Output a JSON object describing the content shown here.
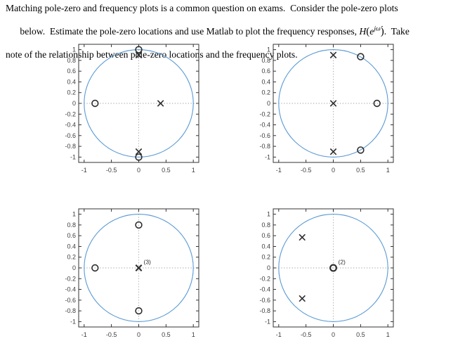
{
  "document": {
    "lines": [
      {
        "text": "Matching pole-zero and frequency plots is a common question on exams.  Consider the pole-zero plots"
      },
      {
        "pre": "below.  Estimate the pole-zero locations and use Matlab to plot the frequency responses, ",
        "formula": {
          "H": "H",
          "open": "(",
          "e": "e",
          "sup": "jω̂",
          "close": ")"
        },
        "post": ".  Take"
      },
      {
        "text": "note of the relationship between pole-zero locations and the frequency plots."
      }
    ]
  },
  "style": {
    "unit_circle_color": "#5b9bd5",
    "marker_color": "#2e2e2e",
    "axis_color": "#333333",
    "tick_label_color": "#3d3d3d",
    "dotted_line_color": "#9a9a9a",
    "annotation_color": "#2b2b2b"
  },
  "chart_data": [
    {
      "type": "scatter",
      "name": "pole-zero-plot-1",
      "title": "",
      "xlabel": "",
      "ylabel": "",
      "unit_circle": true,
      "grid": false,
      "xlim": [
        -1.1,
        1.1
      ],
      "ylim": [
        -1.1,
        1.1
      ],
      "xticks": [
        -1,
        -0.5,
        0,
        0.5,
        1
      ],
      "xtick_labels": [
        "-1",
        "-0.5",
        "0",
        "0.5",
        "1"
      ],
      "yticks": [
        1,
        0.8,
        0.6,
        0.4,
        0.2,
        0,
        -0.2,
        -0.4,
        -0.6,
        -0.8,
        -1
      ],
      "ytick_labels": [
        "1",
        "0.8",
        "0.6",
        "0.4",
        "0.2",
        "0",
        "-0.2",
        "-0.4",
        "-0.6",
        "-0.8",
        "-1"
      ],
      "zeros": [
        [
          0,
          1
        ],
        [
          -0.8,
          0
        ],
        [
          0,
          -1
        ]
      ],
      "poles": [
        [
          0,
          0.9
        ],
        [
          0.4,
          0
        ],
        [
          0,
          -0.9
        ]
      ],
      "annotation": null
    },
    {
      "type": "scatter",
      "name": "pole-zero-plot-2",
      "title": "",
      "xlabel": "",
      "ylabel": "",
      "unit_circle": true,
      "grid": false,
      "xlim": [
        -1.1,
        1.1
      ],
      "ylim": [
        -1.1,
        1.1
      ],
      "xticks": [
        -1,
        -0.5,
        0,
        0.5,
        1
      ],
      "xtick_labels": [
        "-1",
        "-0.5",
        "0",
        "0.5",
        "1"
      ],
      "yticks": [
        1,
        0.8,
        0.6,
        0.4,
        0.2,
        0,
        -0.2,
        -0.4,
        -0.6,
        -0.8,
        -1
      ],
      "ytick_labels": [
        "1",
        "0.8",
        "0.6",
        "0.4",
        "0.2",
        "0",
        "-0.2",
        "-0.4",
        "-0.6",
        "-0.8",
        "-1"
      ],
      "zeros": [
        [
          0.5,
          0.87
        ],
        [
          0.8,
          0
        ],
        [
          0.5,
          -0.87
        ]
      ],
      "poles": [
        [
          0,
          0.9
        ],
        [
          0,
          0
        ],
        [
          0,
          -0.9
        ]
      ],
      "annotation": null
    },
    {
      "type": "scatter",
      "name": "pole-zero-plot-3",
      "title": "",
      "xlabel": "",
      "ylabel": "",
      "unit_circle": true,
      "grid": false,
      "xlim": [
        -1.1,
        1.1
      ],
      "ylim": [
        -1.1,
        1.1
      ],
      "xticks": [
        -1,
        -0.5,
        0,
        0.5,
        1
      ],
      "xtick_labels": [
        "-1",
        "-0.5",
        "0",
        "0.5",
        "1"
      ],
      "yticks": [
        1,
        0.8,
        0.6,
        0.4,
        0.2,
        0,
        -0.2,
        -0.4,
        -0.6,
        -0.8,
        -1
      ],
      "ytick_labels": [
        "1",
        "0.8",
        "0.6",
        "0.4",
        "0.2",
        "0",
        "-0.2",
        "-0.4",
        "-0.6",
        "-0.8",
        "-1"
      ],
      "zeros": [
        [
          0,
          0.8
        ],
        [
          -0.8,
          0
        ],
        [
          0,
          -0.8
        ]
      ],
      "poles": [
        [
          0,
          0
        ]
      ],
      "annotation": {
        "text": "(3)",
        "x": 0.09,
        "y": 0.07,
        "marks": "poles",
        "multiplicity": 3
      }
    },
    {
      "type": "scatter",
      "name": "pole-zero-plot-4",
      "title": "",
      "xlabel": "",
      "ylabel": "",
      "unit_circle": true,
      "grid": false,
      "xlim": [
        -1.1,
        1.1
      ],
      "ylim": [
        -1.1,
        1.1
      ],
      "xticks": [
        -1,
        -0.5,
        0,
        0.5,
        1
      ],
      "xtick_labels": [
        "-1",
        "-0.5",
        "0",
        "0.5",
        "1"
      ],
      "yticks": [
        1,
        0.8,
        0.6,
        0.4,
        0.2,
        0,
        -0.2,
        -0.4,
        -0.6,
        -0.8,
        -1
      ],
      "ytick_labels": [
        "1",
        "0.8",
        "0.6",
        "0.4",
        "0.2",
        "0",
        "-0.2",
        "-0.4",
        "-0.6",
        "-0.8",
        "-1"
      ],
      "zeros": [
        [
          0,
          0
        ]
      ],
      "poles": [
        [
          -0.57,
          0.57
        ],
        [
          -0.57,
          -0.57
        ]
      ],
      "annotation": {
        "text": "(2)",
        "x": 0.09,
        "y": 0.07,
        "marks": "zeros",
        "multiplicity": 2
      }
    }
  ]
}
